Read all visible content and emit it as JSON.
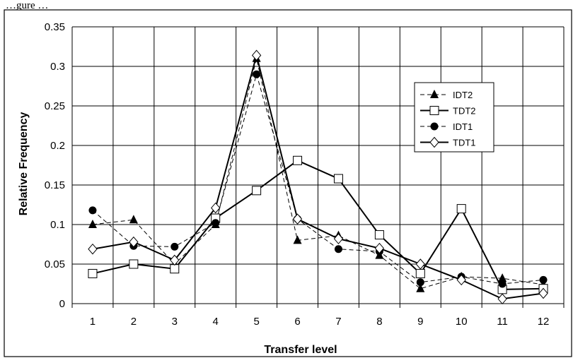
{
  "page": {
    "top_caption": "…gure …"
  },
  "chart_data": {
    "type": "line",
    "title": "",
    "xlabel": "Transfer level",
    "ylabel": "Relative Frequency",
    "categories": [
      "1",
      "2",
      "3",
      "4",
      "5",
      "6",
      "7",
      "8",
      "9",
      "10",
      "11",
      "12"
    ],
    "ylim": [
      0,
      0.35
    ],
    "yticks": [
      "0",
      "0.05",
      "0.1",
      "0.15",
      "0.2",
      "0.25",
      "0.3",
      "0.35"
    ],
    "grid": true,
    "legend_position": "top-right",
    "series": [
      {
        "name": "IDT2",
        "marker": "triangle",
        "line": "dashed",
        "values": [
          0.1,
          0.106,
          0.05,
          0.1,
          0.31,
          0.08,
          0.086,
          0.061,
          0.019,
          0.034,
          0.032,
          0.024
        ]
      },
      {
        "name": "TDT2",
        "marker": "square-open",
        "line": "solid",
        "values": [
          0.038,
          0.05,
          0.044,
          0.108,
          0.143,
          0.181,
          0.158,
          0.087,
          0.038,
          0.12,
          0.018,
          0.019
        ]
      },
      {
        "name": "IDT1",
        "marker": "circle",
        "line": "dashed",
        "values": [
          0.118,
          0.073,
          0.072,
          0.102,
          0.29,
          0.107,
          0.069,
          0.066,
          0.027,
          0.034,
          0.025,
          0.03
        ]
      },
      {
        "name": "TDT1",
        "marker": "diamond-open",
        "line": "solid",
        "values": [
          0.069,
          0.078,
          0.055,
          0.121,
          0.314,
          0.107,
          0.082,
          0.07,
          0.05,
          0.03,
          0.006,
          0.013
        ]
      }
    ]
  }
}
